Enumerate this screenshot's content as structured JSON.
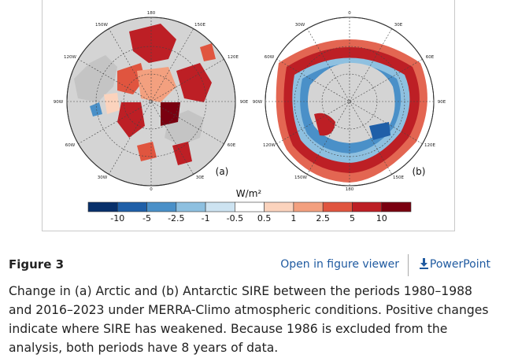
{
  "figure": {
    "panel_a_label": "(a)",
    "panel_b_label": "(b)",
    "panel_a_lon_labels": [
      "180",
      "150E",
      "120E",
      "90E",
      "60E",
      "30E",
      "0",
      "30W",
      "60W",
      "90W",
      "120W",
      "150W"
    ],
    "panel_b_lon_labels": [
      "0",
      "30E",
      "60E",
      "90E",
      "120E",
      "150E",
      "180",
      "150W",
      "120W",
      "90W",
      "60W",
      "30W"
    ],
    "colorbar": {
      "unit": "W/m²",
      "tick_labels": [
        "-10",
        "-5",
        "-2.5",
        "-1",
        "-0.5",
        "0.5",
        "1",
        "2.5",
        "5",
        "10"
      ],
      "colors": [
        "#08306b",
        "#1f5fa8",
        "#4a90c8",
        "#8ec0e0",
        "#cde3f1",
        "#ffffff",
        "#fbd3bd",
        "#f3a07f",
        "#e0553f",
        "#bd1f25",
        "#7a0010"
      ]
    }
  },
  "header": {
    "figure_label": "Figure 3",
    "open_viewer": "Open in figure viewer",
    "powerpoint": "PowerPoint"
  },
  "caption": "Change in (a) Arctic and (b) Antarctic SIRE between the periods 1980–1988 and 2016–2023 under MERRA-Climo atmospheric conditions. Positive changes indicate where SIRE has weakened. Because 1986 is excluded from the analysis, both periods have 8 years of data."
}
